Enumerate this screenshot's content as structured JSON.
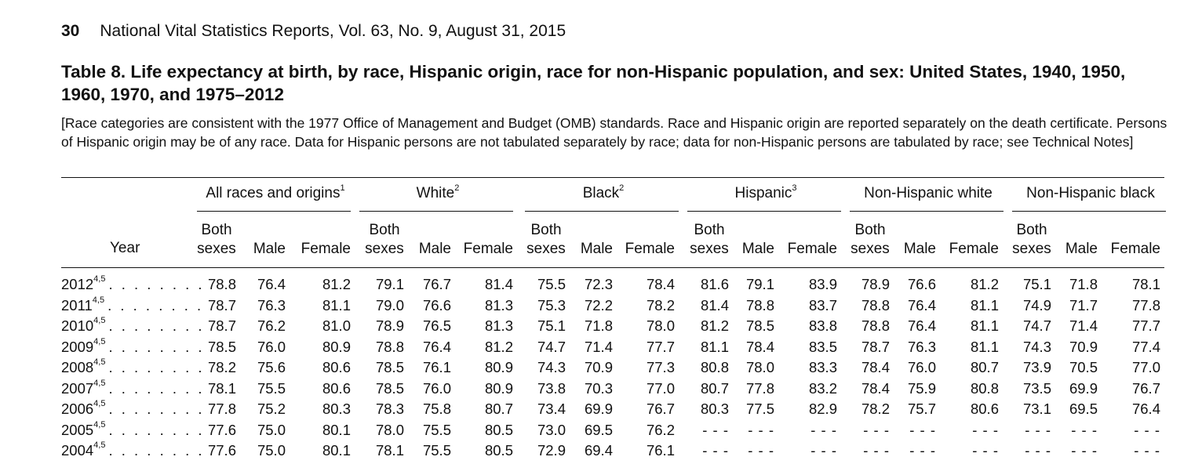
{
  "page": {
    "number": "30",
    "running_head": "National Vital Statistics Reports, Vol. 63, No. 9, August 31, 2015"
  },
  "table": {
    "title": "Table 8. Life expectancy at birth, by race, Hispanic origin, race for non-Hispanic population, and sex: United States, 1940, 1950, 1960, 1970, and 1975–2012",
    "headnote": "[Race categories are consistent with the 1977 Office of Management and Budget (OMB) standards. Race and Hispanic origin are reported separately on the death certificate. Persons of Hispanic origin may be of any race. Data for Hispanic persons are not tabulated separately by race; data for non-Hispanic persons are tabulated by race; see Technical Notes]",
    "year_header": "Year",
    "groups": [
      {
        "label": "All races and origins",
        "note": "1"
      },
      {
        "label": "White",
        "note": "2"
      },
      {
        "label": "Black",
        "note": "2"
      },
      {
        "label": "Hispanic",
        "note": "3"
      },
      {
        "label": "Non-Hispanic white",
        "note": ""
      },
      {
        "label": "Non-Hispanic black",
        "note": ""
      }
    ],
    "subcolumns": {
      "both_line1": "Both",
      "both_line2": "sexes",
      "male": "Male",
      "female": "Female"
    },
    "leader_dots": ". . . . . . . .",
    "rows": [
      {
        "year": "2012",
        "note": "4,5",
        "values": [
          "78.8",
          "76.4",
          "81.2",
          "79.1",
          "76.7",
          "81.4",
          "75.5",
          "72.3",
          "78.4",
          "81.6",
          "79.1",
          "83.9",
          "78.9",
          "76.6",
          "81.2",
          "75.1",
          "71.8",
          "78.1"
        ]
      },
      {
        "year": "2011",
        "note": "4,5",
        "values": [
          "78.7",
          "76.3",
          "81.1",
          "79.0",
          "76.6",
          "81.3",
          "75.3",
          "72.2",
          "78.2",
          "81.4",
          "78.8",
          "83.7",
          "78.8",
          "76.4",
          "81.1",
          "74.9",
          "71.7",
          "77.8"
        ]
      },
      {
        "year": "2010",
        "note": "4,5",
        "values": [
          "78.7",
          "76.2",
          "81.0",
          "78.9",
          "76.5",
          "81.3",
          "75.1",
          "71.8",
          "78.0",
          "81.2",
          "78.5",
          "83.8",
          "78.8",
          "76.4",
          "81.1",
          "74.7",
          "71.4",
          "77.7"
        ]
      },
      {
        "year": "2009",
        "note": "4,5",
        "values": [
          "78.5",
          "76.0",
          "80.9",
          "78.8",
          "76.4",
          "81.2",
          "74.7",
          "71.4",
          "77.7",
          "81.1",
          "78.4",
          "83.5",
          "78.7",
          "76.3",
          "81.1",
          "74.3",
          "70.9",
          "77.4"
        ]
      },
      {
        "year": "2008",
        "note": "4,5",
        "values": [
          "78.2",
          "75.6",
          "80.6",
          "78.5",
          "76.1",
          "80.9",
          "74.3",
          "70.9",
          "77.3",
          "80.8",
          "78.0",
          "83.3",
          "78.4",
          "76.0",
          "80.7",
          "73.9",
          "70.5",
          "77.0"
        ]
      },
      {
        "year": "2007",
        "note": "4,5",
        "values": [
          "78.1",
          "75.5",
          "80.6",
          "78.5",
          "76.0",
          "80.9",
          "73.8",
          "70.3",
          "77.0",
          "80.7",
          "77.8",
          "83.2",
          "78.4",
          "75.9",
          "80.8",
          "73.5",
          "69.9",
          "76.7"
        ]
      },
      {
        "year": "2006",
        "note": "4,5",
        "values": [
          "77.8",
          "75.2",
          "80.3",
          "78.3",
          "75.8",
          "80.7",
          "73.4",
          "69.9",
          "76.7",
          "80.3",
          "77.5",
          "82.9",
          "78.2",
          "75.7",
          "80.6",
          "73.1",
          "69.5",
          "76.4"
        ]
      },
      {
        "year": "2005",
        "note": "4,5",
        "values": [
          "77.6",
          "75.0",
          "80.1",
          "78.0",
          "75.5",
          "80.5",
          "73.0",
          "69.5",
          "76.2",
          "- - -",
          "- - -",
          "- - -",
          "- - -",
          "- - -",
          "- - -",
          "- - -",
          "- - -",
          "- - -"
        ]
      },
      {
        "year": "2004",
        "note": "4,5",
        "values": [
          "77.6",
          "75.0",
          "80.1",
          "78.1",
          "75.5",
          "80.5",
          "72.9",
          "69.4",
          "76.1",
          "- - -",
          "- - -",
          "- - -",
          "- - -",
          "- - -",
          "- - -",
          "- - -",
          "- - -",
          "- - -"
        ]
      }
    ]
  }
}
